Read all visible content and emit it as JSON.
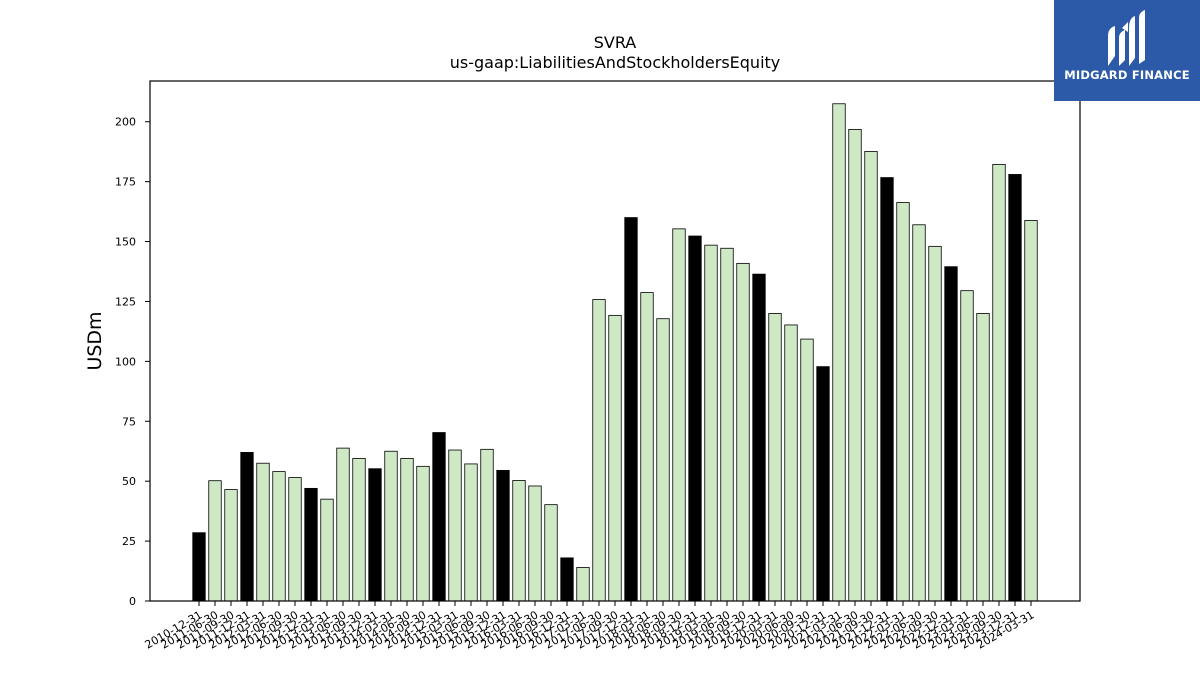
{
  "logo": {
    "text": "MIDGARD FINANCE",
    "color": "#2d5aa8"
  },
  "chart_data": {
    "type": "bar",
    "title": "SVRA",
    "subtitle": "us-gaap:LiabilitiesAndStockholdersEquity",
    "xlabel": "",
    "ylabel": "USDm",
    "ylim": [
      0,
      217
    ],
    "yticks": [
      0,
      25,
      50,
      75,
      100,
      125,
      150,
      175,
      200
    ],
    "grid": false,
    "colors": {
      "annual": "#000000",
      "quarter": "#cfe8c6",
      "edge": "#000000"
    },
    "categories": [
      "2010-12-31",
      "2011-06-30",
      "2011-09-30",
      "2011-12-31",
      "2012-03-31",
      "2012-06-30",
      "2012-09-30",
      "2012-12-31",
      "2013-03-31",
      "2013-06-30",
      "2013-09-30",
      "2013-12-31",
      "2014-03-31",
      "2014-06-30",
      "2014-09-30",
      "2014-12-31",
      "2015-03-31",
      "2015-06-30",
      "2015-09-30",
      "2015-12-31",
      "2016-03-31",
      "2016-06-30",
      "2016-09-30",
      "2016-12-31",
      "2017-03-31",
      "2017-06-30",
      "2017-09-30",
      "2017-12-31",
      "2018-03-31",
      "2018-06-30",
      "2018-09-30",
      "2018-12-31",
      "2019-03-31",
      "2019-06-30",
      "2019-09-30",
      "2019-12-31",
      "2020-03-31",
      "2020-06-30",
      "2020-09-30",
      "2020-12-31",
      "2021-03-31",
      "2021-06-30",
      "2021-09-30",
      "2021-12-31",
      "2022-03-31",
      "2022-06-30",
      "2022-09-30",
      "2022-12-31",
      "2023-03-31",
      "2023-06-30",
      "2023-09-30",
      "2023-12-31",
      "2024-03-31"
    ],
    "values": [
      28.5,
      50.2,
      46.5,
      62,
      57.5,
      54,
      51.5,
      47,
      42.5,
      63.8,
      59.5,
      55.2,
      62.5,
      59.5,
      56.2,
      70.3,
      63,
      57.2,
      63.3,
      54.5,
      50.3,
      48,
      40.2,
      18,
      14,
      125.8,
      119.2,
      160,
      128.7,
      117.8,
      155.3,
      152.3,
      148.5,
      147.2,
      140.9,
      136.4,
      120,
      115.2,
      109.3,
      97.8,
      207.5,
      196.8,
      187.6,
      176.7,
      166.3,
      157,
      148,
      139.5,
      129.5,
      120,
      182.2,
      178,
      158.8
    ],
    "annual": [
      true,
      false,
      false,
      true,
      false,
      false,
      false,
      true,
      false,
      false,
      false,
      true,
      false,
      false,
      false,
      true,
      false,
      false,
      false,
      true,
      false,
      false,
      false,
      true,
      false,
      false,
      false,
      true,
      false,
      false,
      false,
      true,
      false,
      false,
      false,
      true,
      false,
      false,
      false,
      true,
      false,
      false,
      false,
      true,
      false,
      false,
      false,
      true,
      false,
      false,
      false,
      true,
      false
    ]
  }
}
